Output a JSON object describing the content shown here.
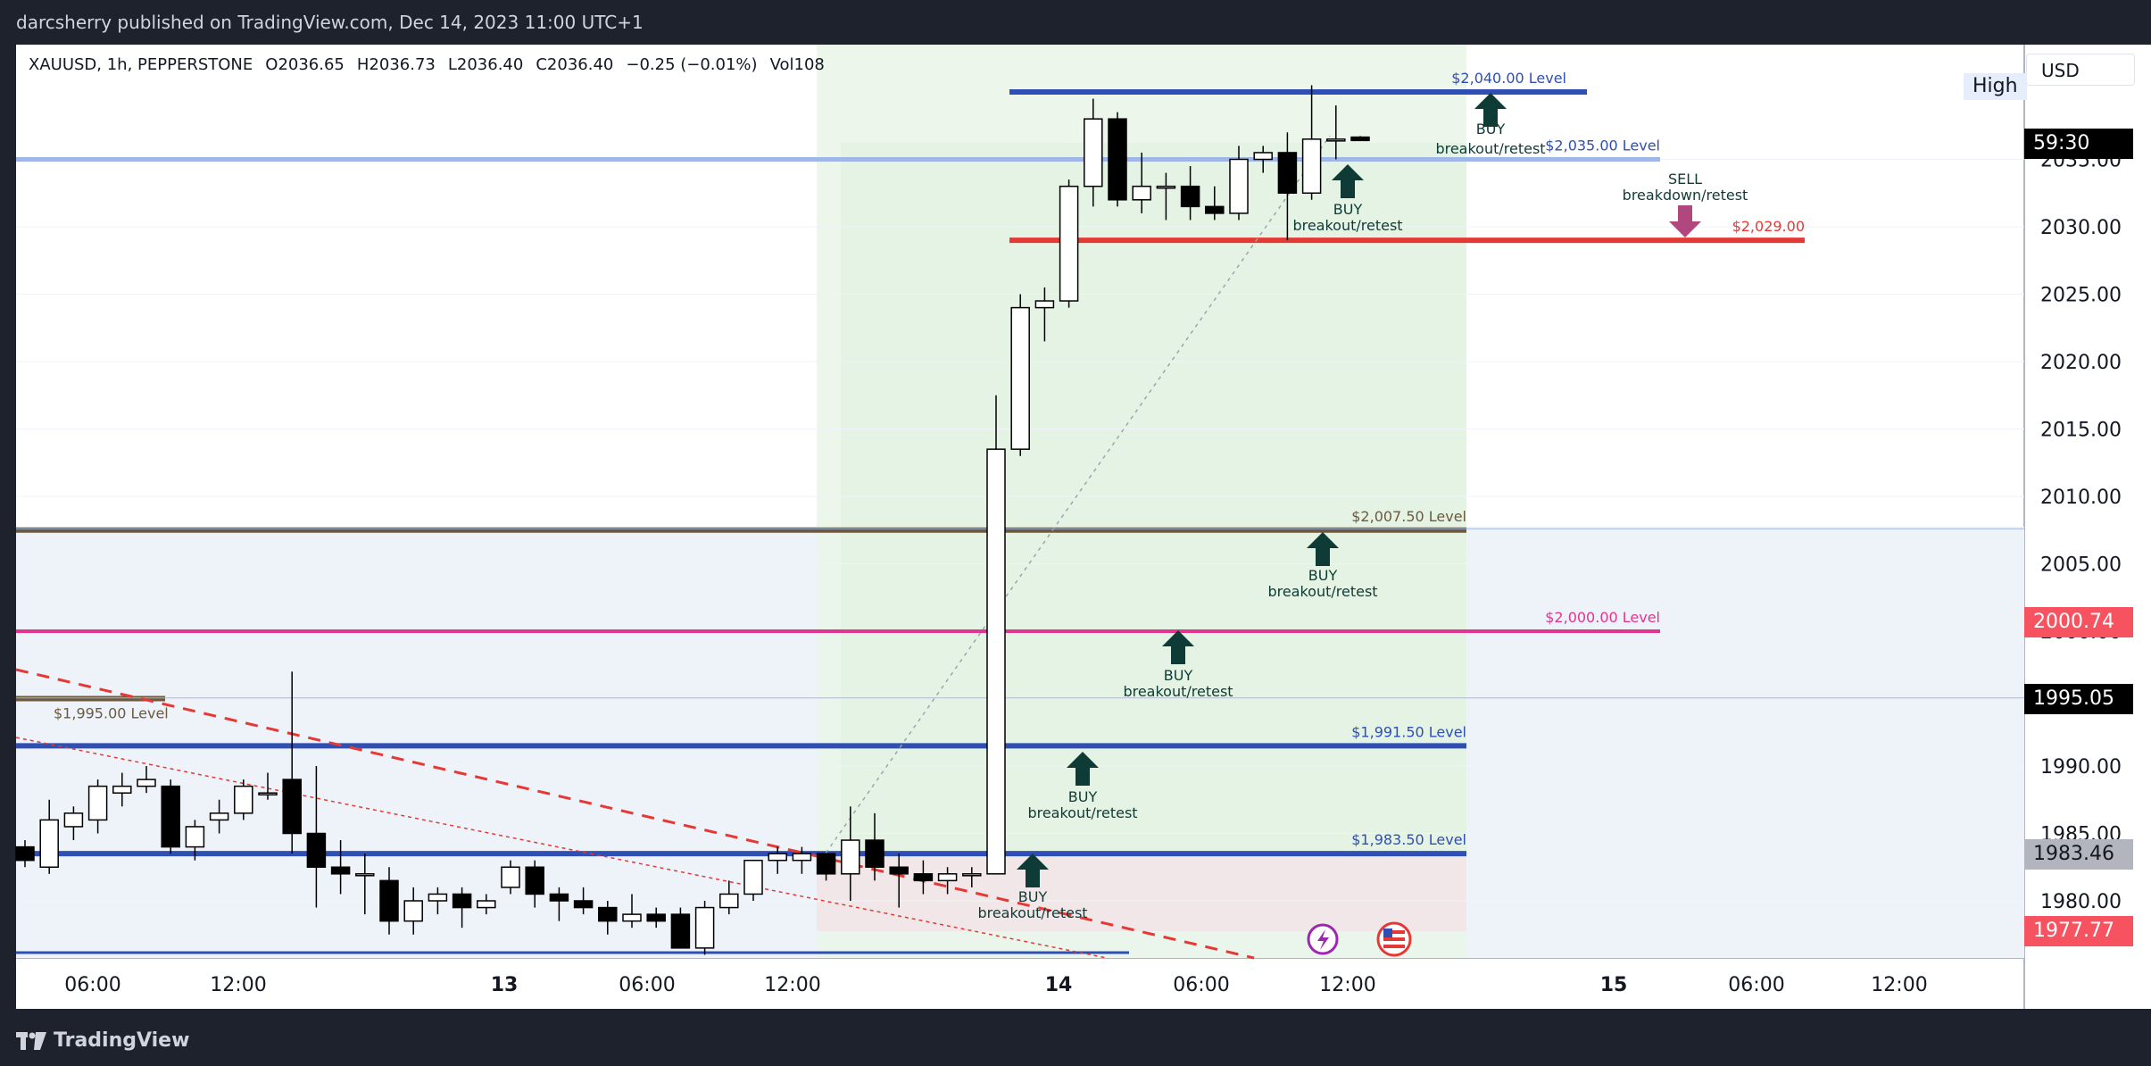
{
  "header": {
    "published_text": "darcsherry published on TradingView.com, Dec 14, 2023 11:00 UTC+1"
  },
  "legend": {
    "symbol": "XAUUSD, 1h, PEPPERSTONE",
    "open": "O2036.65",
    "high": "H2036.73",
    "low": "L2036.40",
    "close": "C2036.40",
    "change": "−0.25 (−0.01%)",
    "volume": "Vol108"
  },
  "currency_button": "USD",
  "high_badge": "High",
  "price_tags": {
    "countdown": "59:30",
    "level_2000": "2000.74",
    "level_1995": "1995.05",
    "level_1983": "1983.46",
    "level_1977": "1977.77"
  },
  "footer": {
    "brand": "TradingView"
  },
  "colors": {
    "background": "#ffffff",
    "frame": "#1e222d",
    "bull_candle": "#ffffff",
    "bear_candle": "#000000",
    "blue_level": "#2f4fb5",
    "red_level": "#e53935",
    "brown_level": "#6d5a3d",
    "pink_level": "#e2358f",
    "arrow_green": "#0e3b35",
    "arrow_sell": "#b0487f",
    "tag_red": "#f7525f",
    "tag_black": "#000000",
    "tag_gray": "#b2b5be"
  },
  "chart_data": {
    "type": "candlestick",
    "symbol": "XAUUSD",
    "timeframe": "1h",
    "ylim": [
      1976,
      2041.5
    ],
    "y_ticks": [
      "1980.00",
      "1985.00",
      "1990.00",
      "1995.00",
      "2000.00",
      "2005.00",
      "2010.00",
      "2015.00",
      "2020.00",
      "2025.00",
      "2030.00",
      "2035.00"
    ],
    "x_ticks": [
      "06:00",
      "12:00",
      "13",
      "06:00",
      "12:00",
      "14",
      "06:00",
      "12:00",
      "15",
      "06:00",
      "12:00"
    ],
    "candles": [
      [
        1984.0,
        1984.5,
        1982.5,
        1983.0
      ],
      [
        1982.5,
        1987.5,
        1982.0,
        1986.0
      ],
      [
        1985.5,
        1987.0,
        1984.5,
        1986.5
      ],
      [
        1986.0,
        1989.0,
        1985.0,
        1988.5
      ],
      [
        1988.0,
        1989.5,
        1987.0,
        1988.5
      ],
      [
        1988.5,
        1990.0,
        1988.0,
        1989.0
      ],
      [
        1988.5,
        1989.0,
        1983.5,
        1984.0
      ],
      [
        1984.0,
        1986.0,
        1983.0,
        1985.5
      ],
      [
        1986.0,
        1987.5,
        1985.0,
        1986.5
      ],
      [
        1986.5,
        1989.0,
        1986.0,
        1988.5
      ],
      [
        1988.0,
        1989.5,
        1987.5,
        1988.0
      ],
      [
        1989.0,
        1997.0,
        1983.5,
        1985.0
      ],
      [
        1985.0,
        1990.0,
        1979.5,
        1982.5
      ],
      [
        1982.5,
        1984.5,
        1980.5,
        1982.0
      ],
      [
        1982.0,
        1983.5,
        1979.0,
        1982.0
      ],
      [
        1981.5,
        1982.5,
        1977.5,
        1978.5
      ],
      [
        1978.5,
        1981.0,
        1977.5,
        1980.0
      ],
      [
        1980.0,
        1981.0,
        1979.0,
        1980.5
      ],
      [
        1980.5,
        1981.0,
        1978.0,
        1979.5
      ],
      [
        1979.5,
        1980.5,
        1979.0,
        1980.0
      ],
      [
        1981.0,
        1983.0,
        1980.5,
        1982.5
      ],
      [
        1982.5,
        1983.0,
        1979.5,
        1980.5
      ],
      [
        1980.5,
        1981.0,
        1978.5,
        1980.0
      ],
      [
        1980.0,
        1981.0,
        1979.0,
        1979.5
      ],
      [
        1979.5,
        1980.0,
        1977.5,
        1978.5
      ],
      [
        1978.5,
        1980.5,
        1978.0,
        1979.0
      ],
      [
        1979.0,
        1979.5,
        1978.0,
        1978.5
      ],
      [
        1979.0,
        1979.5,
        1976.5,
        1976.5
      ],
      [
        1976.5,
        1980.0,
        1976.0,
        1979.5
      ],
      [
        1979.5,
        1981.5,
        1979.0,
        1980.5
      ],
      [
        1980.5,
        1983.0,
        1980.0,
        1983.0
      ],
      [
        1983.0,
        1984.0,
        1982.0,
        1983.5
      ],
      [
        1983.0,
        1984.0,
        1982.0,
        1983.5
      ],
      [
        1983.5,
        1983.5,
        1981.5,
        1982.0
      ],
      [
        1982.0,
        1987.0,
        1980.0,
        1984.5
      ],
      [
        1984.5,
        1986.5,
        1981.5,
        1982.5
      ],
      [
        1982.5,
        1983.5,
        1979.5,
        1982.0
      ],
      [
        1982.0,
        1983.0,
        1980.5,
        1981.5
      ],
      [
        1981.5,
        1982.5,
        1980.5,
        1982.0
      ],
      [
        1982.0,
        1982.5,
        1981.0,
        1982.0
      ],
      [
        1982.0,
        2017.5,
        1982.0,
        2013.5
      ],
      [
        2013.5,
        2025.0,
        2013.0,
        2024.0
      ],
      [
        2024.0,
        2025.5,
        2021.5,
        2024.5
      ],
      [
        2024.5,
        2033.5,
        2024.0,
        2033.0
      ],
      [
        2033.0,
        2039.5,
        2031.5,
        2038.0
      ],
      [
        2038.0,
        2038.5,
        2031.5,
        2032.0
      ],
      [
        2032.0,
        2035.5,
        2031.0,
        2033.0
      ],
      [
        2033.0,
        2034.0,
        2030.5,
        2033.0
      ],
      [
        2033.0,
        2034.5,
        2030.5,
        2031.5
      ],
      [
        2031.5,
        2033.0,
        2030.5,
        2031.0
      ],
      [
        2031.0,
        2036.0,
        2030.5,
        2035.0
      ],
      [
        2035.0,
        2036.0,
        2034.0,
        2035.5
      ],
      [
        2035.5,
        2037.0,
        2029.0,
        2032.5
      ],
      [
        2032.5,
        2040.5,
        2032.0,
        2036.5
      ],
      [
        2036.5,
        2039.0,
        2035.0,
        2036.5
      ],
      [
        2036.65,
        2036.73,
        2036.4,
        2036.4
      ]
    ],
    "levels": [
      {
        "label": "$2,040.00 Level",
        "price": 2040.0,
        "color": "#2f4fb5"
      },
      {
        "label": "$2,035.00 Level",
        "price": 2035.0,
        "color": "#9fb7e8"
      },
      {
        "label": "$2,029.00",
        "price": 2029.0,
        "color": "#e53935"
      },
      {
        "label": "$2,007.50 Level",
        "price": 2007.5,
        "color": "#6d5a3d"
      },
      {
        "label": "$2,000.00 Level",
        "price": 2000.0,
        "color": "#e2358f"
      },
      {
        "label": "$1,995.00 Level",
        "price": 1995.0,
        "color": "#6d5a3d"
      },
      {
        "label": "$1,991.50 Level",
        "price": 1991.5,
        "color": "#2f4fb5"
      },
      {
        "label": "$1,983.50 Level",
        "price": 1983.5,
        "color": "#2f4fb5"
      }
    ],
    "annotations": [
      {
        "text": "BUY",
        "sub": "breakout/retest",
        "type": "buy"
      },
      {
        "text": "BUY",
        "sub": "breakout/retest",
        "type": "buy"
      },
      {
        "text": "BUY",
        "sub": "breakout/retest",
        "type": "buy"
      },
      {
        "text": "BUY",
        "sub": "breakout/retest",
        "type": "buy"
      },
      {
        "text": "BUY",
        "sub": "breakout/retest",
        "type": "buy"
      },
      {
        "text": "BUY",
        "sub": "breakout/retest",
        "type": "buy"
      },
      {
        "text": "SELL",
        "sub": "breakdown/retest",
        "type": "sell"
      }
    ]
  }
}
